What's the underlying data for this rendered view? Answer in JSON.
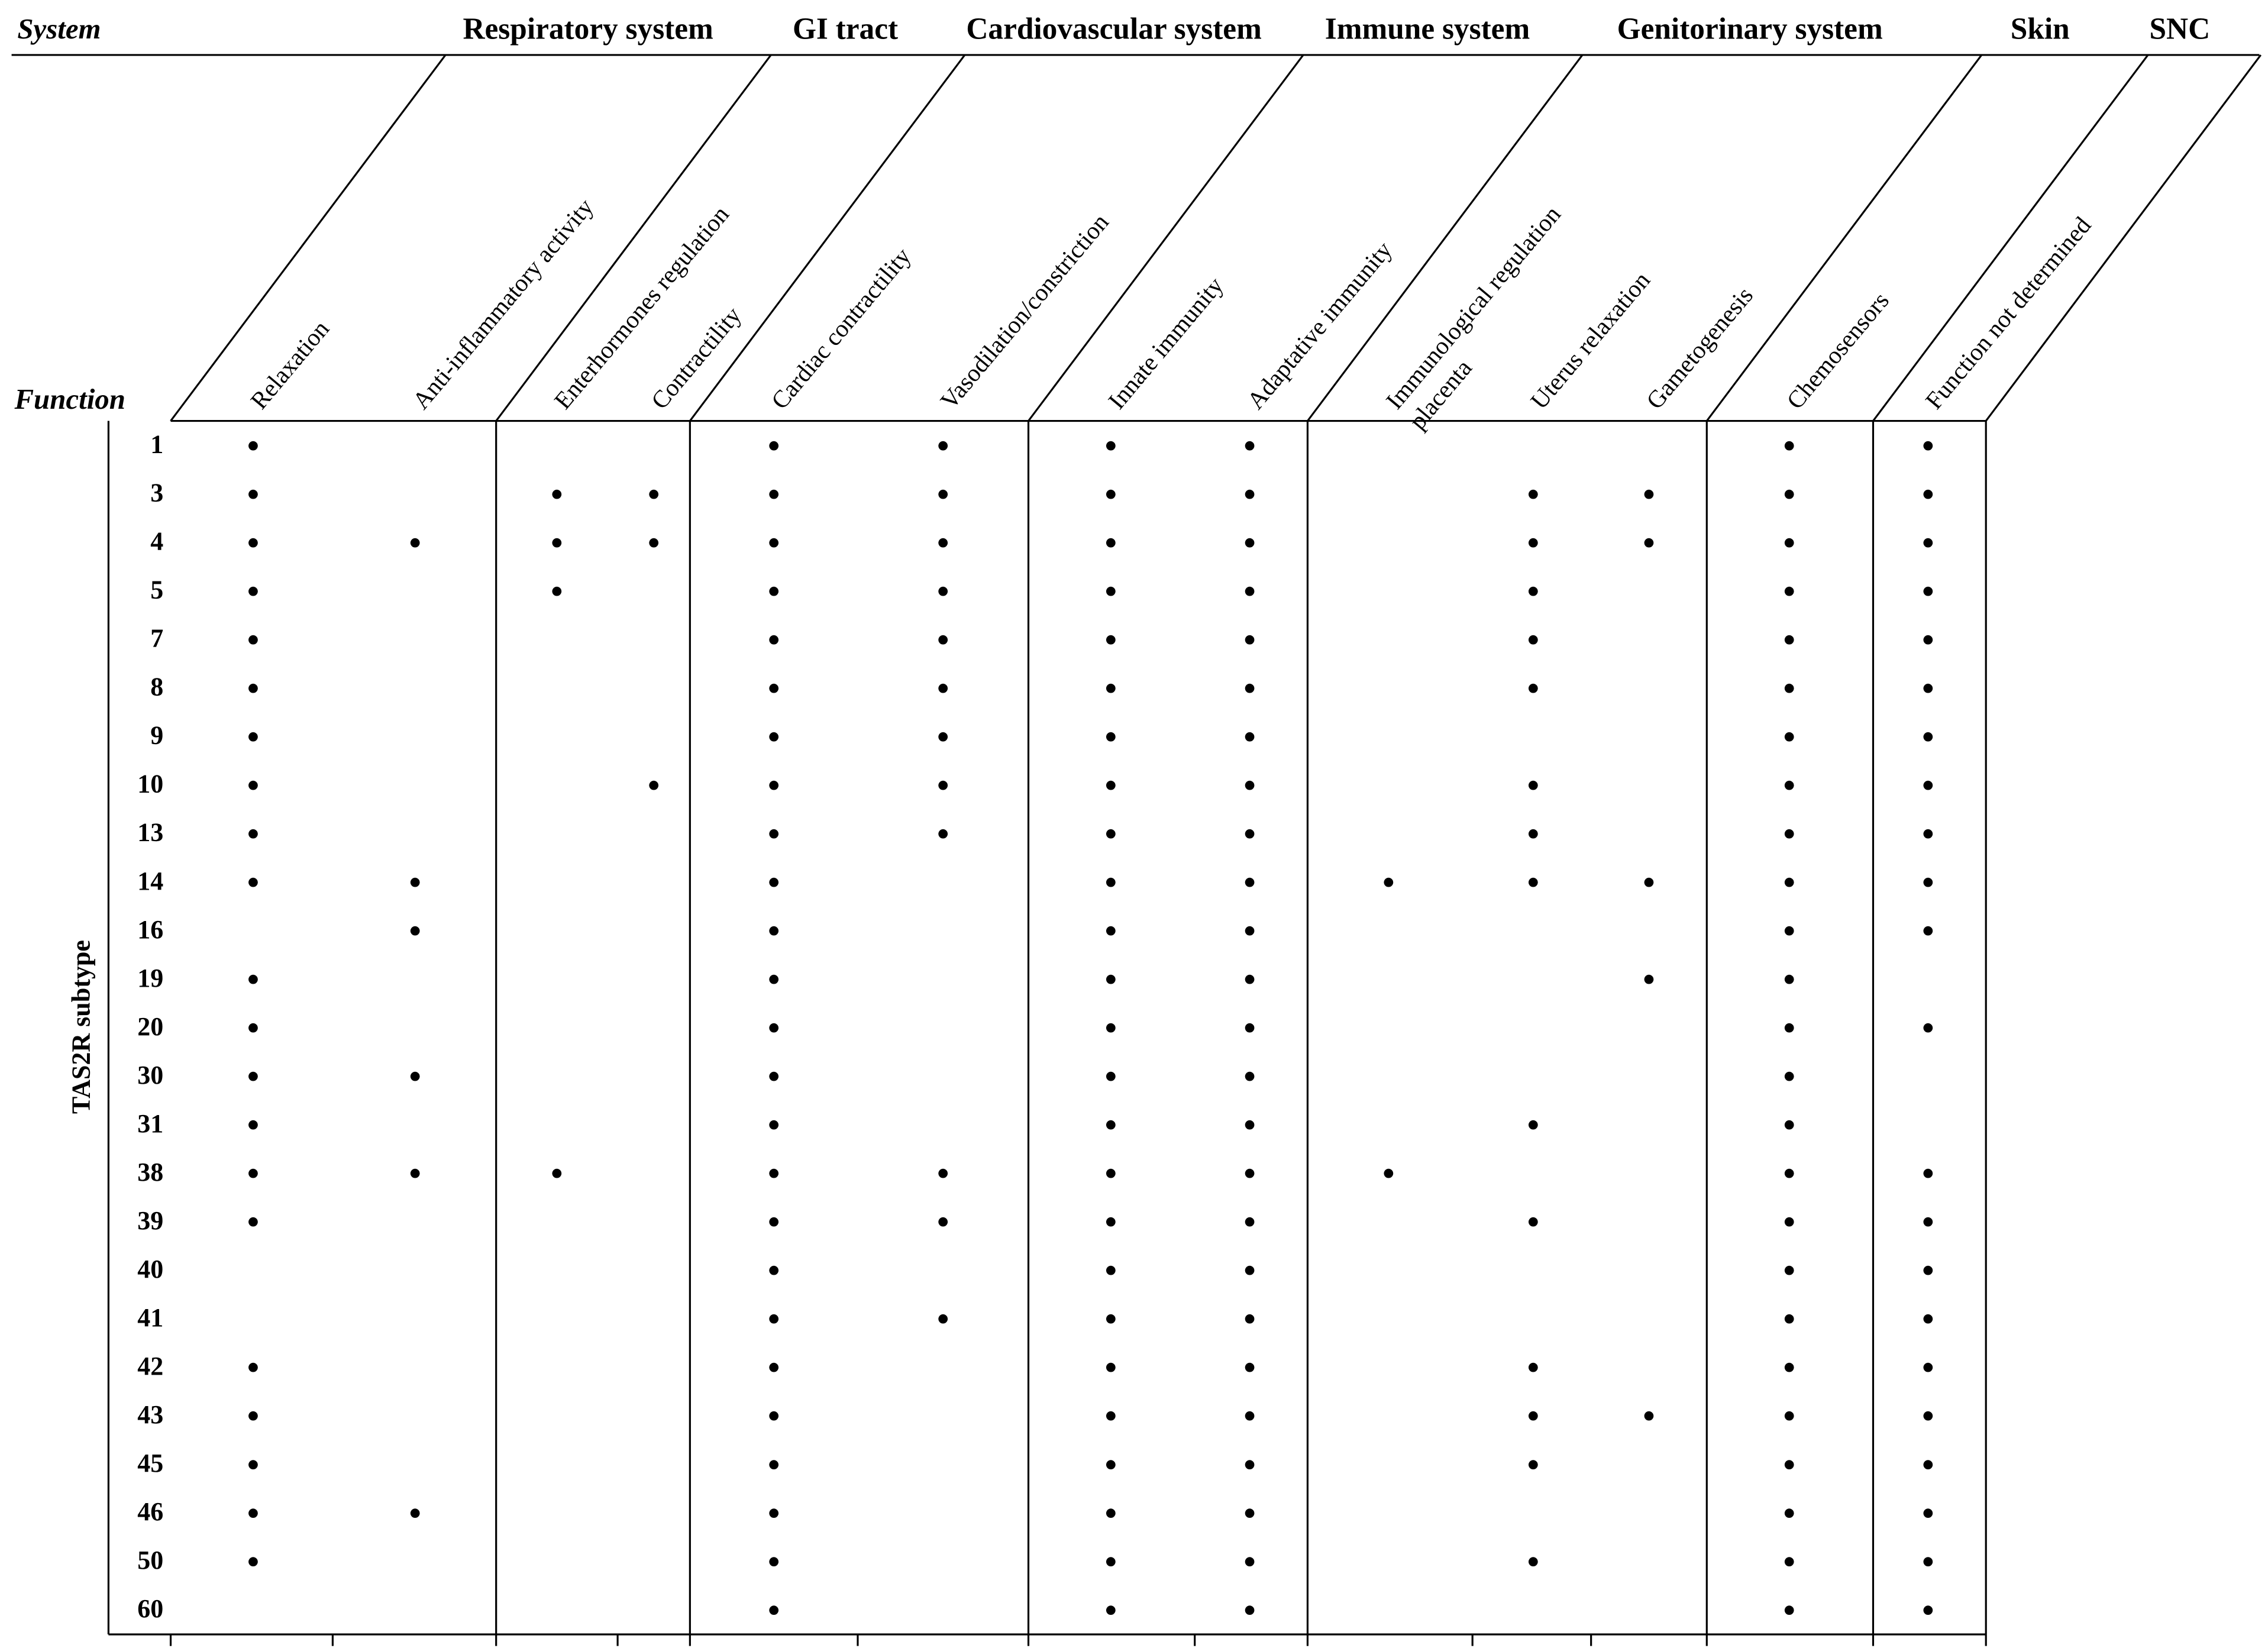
{
  "header": {
    "system_label": "System",
    "function_label": "Function",
    "row_axis_label": "TAS2R subtype"
  },
  "systems": [
    "Respiratory system",
    "GI tract",
    "Cardiovascular system",
    "Immune system",
    "Genitorinary system",
    "Skin",
    "SNC"
  ],
  "functions": [
    [
      "Relaxation"
    ],
    [
      "Anti-inflammatory activity"
    ],
    [
      "Enterhormones regulation"
    ],
    [
      "Contractility"
    ],
    [
      "Cardiac contractility"
    ],
    [
      "Vasodilation/constriction"
    ],
    [
      "Innate immunity"
    ],
    [
      "Adaptative immunity"
    ],
    [
      "Immunological regulation",
      "placenta"
    ],
    [
      "Uterus relaxation"
    ],
    [
      "Gametogenesis"
    ],
    [
      "Chemosensors"
    ],
    [
      "Function not determined"
    ]
  ],
  "table": {
    "rows": [
      {
        "subtype": "1",
        "cells": [
          "●",
          null,
          null,
          null,
          "●",
          "●",
          "●",
          "●",
          null,
          null,
          null,
          "●",
          "●"
        ]
      },
      {
        "subtype": "3",
        "cells": [
          "●",
          null,
          "●",
          "●",
          "●",
          "●",
          "●",
          "●",
          null,
          "●",
          "●",
          "●",
          "●"
        ]
      },
      {
        "subtype": "4",
        "cells": [
          "●",
          "●",
          "●",
          "●",
          "●",
          "●",
          "●",
          "●",
          null,
          "●",
          "●",
          "●",
          "●"
        ]
      },
      {
        "subtype": "5",
        "cells": [
          "●",
          null,
          "●",
          null,
          "●",
          "●",
          "●",
          "●",
          null,
          "●",
          null,
          "●",
          "●"
        ]
      },
      {
        "subtype": "7",
        "cells": [
          "●",
          null,
          null,
          null,
          "●",
          "●",
          "●",
          "●",
          null,
          "●",
          null,
          "●",
          "●"
        ]
      },
      {
        "subtype": "8",
        "cells": [
          "●",
          null,
          null,
          null,
          "●",
          "●",
          "●",
          "●",
          null,
          "●",
          null,
          "●",
          "●"
        ]
      },
      {
        "subtype": "9",
        "cells": [
          "●",
          null,
          null,
          null,
          "●",
          "●",
          "●",
          "●",
          null,
          null,
          null,
          "●",
          "●"
        ]
      },
      {
        "subtype": "10",
        "cells": [
          "●",
          null,
          null,
          "●",
          "●",
          "●",
          "●",
          "●",
          null,
          "●",
          null,
          "●",
          "●"
        ]
      },
      {
        "subtype": "13",
        "cells": [
          "●",
          null,
          null,
          null,
          "●",
          "●",
          "●",
          "●",
          null,
          "●",
          null,
          "●",
          "●"
        ]
      },
      {
        "subtype": "14",
        "cells": [
          "●",
          "●",
          null,
          null,
          "●",
          null,
          "●",
          "●",
          "●",
          "●",
          "●",
          "●",
          "●"
        ]
      },
      {
        "subtype": "16",
        "cells": [
          null,
          "●",
          null,
          null,
          "●",
          null,
          "●",
          "●",
          null,
          null,
          null,
          "●",
          "●"
        ]
      },
      {
        "subtype": "19",
        "cells": [
          "●",
          null,
          null,
          null,
          "●",
          null,
          "●",
          "●",
          null,
          null,
          "●",
          "●",
          null
        ]
      },
      {
        "subtype": "20",
        "cells": [
          "●",
          null,
          null,
          null,
          "●",
          null,
          "●",
          "●",
          null,
          null,
          null,
          "●",
          "●"
        ]
      },
      {
        "subtype": "30",
        "cells": [
          "●",
          "●",
          null,
          null,
          "●",
          null,
          "●",
          "●",
          null,
          null,
          null,
          "●",
          null
        ]
      },
      {
        "subtype": "31",
        "cells": [
          "●",
          null,
          null,
          null,
          "●",
          null,
          "●",
          "●",
          null,
          "●",
          null,
          "●",
          null
        ]
      },
      {
        "subtype": "38",
        "cells": [
          "●",
          "●",
          "●",
          null,
          "●",
          "●",
          "●",
          "●",
          "●",
          null,
          null,
          "●",
          "●"
        ]
      },
      {
        "subtype": "39",
        "cells": [
          "●",
          null,
          null,
          null,
          "●",
          "●",
          "●",
          "●",
          null,
          "●",
          null,
          "●",
          "●"
        ]
      },
      {
        "subtype": "40",
        "cells": [
          null,
          null,
          null,
          null,
          "●",
          null,
          "●",
          "●",
          null,
          null,
          null,
          "●",
          "●"
        ]
      },
      {
        "subtype": "41",
        "cells": [
          null,
          null,
          null,
          null,
          "●",
          "●",
          "●",
          "●",
          null,
          null,
          null,
          "●",
          "●"
        ]
      },
      {
        "subtype": "42",
        "cells": [
          "●",
          null,
          null,
          null,
          "●",
          null,
          "●",
          "●",
          null,
          "●",
          null,
          "●",
          "●"
        ]
      },
      {
        "subtype": "43",
        "cells": [
          "●",
          null,
          null,
          null,
          "●",
          null,
          "●",
          "●",
          null,
          "●",
          "●",
          "●",
          "●"
        ]
      },
      {
        "subtype": "45",
        "cells": [
          "●",
          null,
          null,
          null,
          "●",
          null,
          "●",
          "●",
          null,
          "●",
          null,
          "●",
          "●"
        ]
      },
      {
        "subtype": "46",
        "cells": [
          "●",
          "●",
          null,
          null,
          "●",
          null,
          "●",
          "●",
          null,
          null,
          null,
          "●",
          "●"
        ]
      },
      {
        "subtype": "50",
        "cells": [
          "●",
          null,
          null,
          null,
          "●",
          null,
          "●",
          "●",
          null,
          "●",
          null,
          "●",
          "●"
        ]
      },
      {
        "subtype": "60",
        "cells": [
          null,
          null,
          null,
          null,
          "●",
          null,
          "●",
          "●",
          null,
          null,
          null,
          "●",
          "●"
        ]
      }
    ]
  }
}
